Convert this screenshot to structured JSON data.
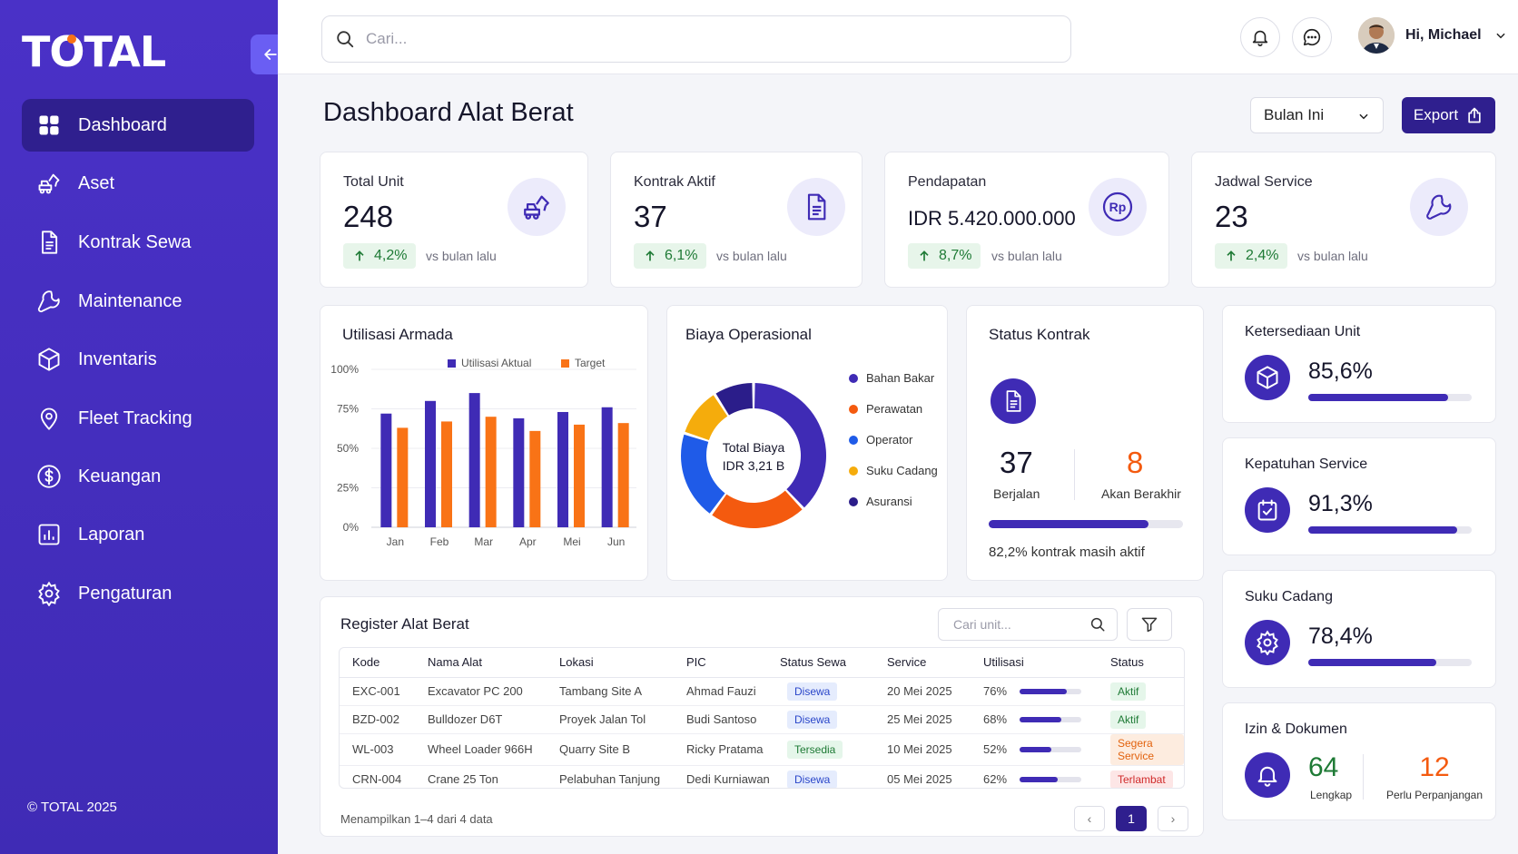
{
  "brand": {
    "logo": "TOTAL",
    "copyright": "© TOTAL 2025"
  },
  "sidebar": {
    "items": [
      {
        "label": "Dashboard",
        "icon": "grid-icon",
        "active": true
      },
      {
        "label": "Aset",
        "icon": "excavator-icon"
      },
      {
        "label": "Kontrak Sewa",
        "icon": "document-icon"
      },
      {
        "label": "Maintenance",
        "icon": "wrench-icon"
      },
      {
        "label": "Inventaris",
        "icon": "box-icon"
      },
      {
        "label": "Fleet Tracking",
        "icon": "location-pin-icon"
      },
      {
        "label": "Keuangan",
        "icon": "dollar-icon"
      },
      {
        "label": "Laporan",
        "icon": "bar-chart-icon"
      },
      {
        "label": "Pengaturan",
        "icon": "gear-icon"
      }
    ]
  },
  "topbar": {
    "search_placeholder": "Cari...",
    "user_greeting": "Hi, Michael"
  },
  "header": {
    "title": "Dashboard Alat Berat",
    "period": "Bulan Ini",
    "export_label": "Export"
  },
  "kpis": [
    {
      "label": "Total Unit",
      "value": "248",
      "change": "4,2%",
      "vs": "vs bulan lalu",
      "icon": "excavator-icon"
    },
    {
      "label": "Kontrak Aktif",
      "value": "37",
      "change": "6,1%",
      "vs": "vs bulan lalu",
      "icon": "document-icon"
    },
    {
      "label": "Pendapatan",
      "value": "IDR 5.420.000.000",
      "change": "8,7%",
      "vs": "vs bulan lalu",
      "icon": "rupiah-icon"
    },
    {
      "label": "Jadwal Service",
      "value": "23",
      "change": "2,4%",
      "vs": "vs bulan lalu",
      "icon": "wrench-icon"
    }
  ],
  "utilisasi": {
    "title": "Utilisasi Armada"
  },
  "biaya": {
    "title": "Biaya Operasional",
    "center_label": "Total Biaya",
    "center_value": "IDR 3,21 B"
  },
  "chart_data": [
    {
      "type": "bar",
      "title": "Utilisasi Armada",
      "categories": [
        "Jan",
        "Feb",
        "Mar",
        "Apr",
        "Mei",
        "Jun"
      ],
      "series": [
        {
          "name": "Utilisasi Aktual",
          "color": "#3f2bb5",
          "values": [
            72,
            80,
            85,
            69,
            73,
            76
          ]
        },
        {
          "name": "Target",
          "color": "#f97316",
          "values": [
            63,
            67,
            70,
            61,
            65,
            66
          ]
        }
      ],
      "yticks": [
        "0%",
        "25%",
        "50%",
        "75%",
        "100%"
      ],
      "ylim": [
        0,
        100
      ],
      "legend": "top",
      "grid": true
    },
    {
      "type": "pie",
      "title": "Biaya Operasional",
      "slices": [
        {
          "name": "Bahan Bakar",
          "color": "#3f2bb5",
          "value": 38
        },
        {
          "name": "Perawatan",
          "color": "#f45a0f",
          "value": 22
        },
        {
          "name": "Operator",
          "color": "#1f5be8",
          "value": 20
        },
        {
          "name": "Suku Cadang",
          "color": "#f5ac0c",
          "value": 11
        },
        {
          "name": "Asuransi",
          "color": "#2b1d8a",
          "value": 9
        }
      ],
      "legend": "right"
    }
  ],
  "status_kontrak": {
    "title": "Status Kontrak",
    "running": "37",
    "running_label": "Berjalan",
    "ending": "8",
    "ending_label": "Akan Berakhir",
    "progress": 0.822,
    "note": "82,2% kontrak masih aktif"
  },
  "side_cards": [
    {
      "title": "Ketersediaan Unit",
      "value": "85,6%",
      "level": 0.856,
      "icon": "cube-icon"
    },
    {
      "title": "Kepatuhan Service",
      "value": "91,3%",
      "level": 0.913,
      "icon": "calendar-check-icon"
    },
    {
      "title": "Suku Cadang",
      "value": "78,4%",
      "level": 0.784,
      "icon": "gear-icon"
    }
  ],
  "izin": {
    "title": "Izin & Dokumen",
    "complete": "64",
    "complete_label": "Lengkap",
    "renew": "12",
    "renew_label": "Perlu Perpanjangan"
  },
  "register": {
    "title": "Register Alat Berat",
    "search_placeholder": "Cari unit...",
    "columns": [
      "Kode",
      "Nama Alat",
      "Lokasi",
      "PIC",
      "Status Sewa",
      "Service",
      "Utilisasi",
      "Status"
    ],
    "rows": [
      {
        "kode": "EXC-001",
        "nama": "Excavator PC 200",
        "lokasi": "Tambang Site A",
        "pic": "Ahmad Fauzi",
        "sewa": "Disewa",
        "sewa_style": "blue",
        "service": "20 Mei 2025",
        "util": "76%",
        "util_level": 0.76,
        "status": "Aktif",
        "status_style": "green"
      },
      {
        "kode": "BZD-002",
        "nama": "Bulldozer D6T",
        "lokasi": "Proyek Jalan Tol",
        "pic": "Budi Santoso",
        "sewa": "Disewa",
        "sewa_style": "blue",
        "service": "25 Mei 2025",
        "util": "68%",
        "util_level": 0.68,
        "status": "Aktif",
        "status_style": "green"
      },
      {
        "kode": "WL-003",
        "nama": "Wheel Loader 966H",
        "lokasi": "Quarry Site B",
        "pic": "Ricky Pratama",
        "sewa": "Tersedia",
        "sewa_style": "green",
        "service": "10 Mei 2025",
        "util": "52%",
        "util_level": 0.52,
        "status": "Segera Service",
        "status_style": "orange"
      },
      {
        "kode": "CRN-004",
        "nama": "Crane 25 Ton",
        "lokasi": "Pelabuhan Tanjung",
        "pic": "Dedi Kurniawan",
        "sewa": "Disewa",
        "sewa_style": "blue",
        "service": "05 Mei 2025",
        "util": "62%",
        "util_level": 0.62,
        "status": "Terlambat",
        "status_style": "red"
      }
    ],
    "footer": "Menampilkan 1–4 dari 4 data",
    "prev": "‹",
    "page": "1",
    "next": "›"
  }
}
